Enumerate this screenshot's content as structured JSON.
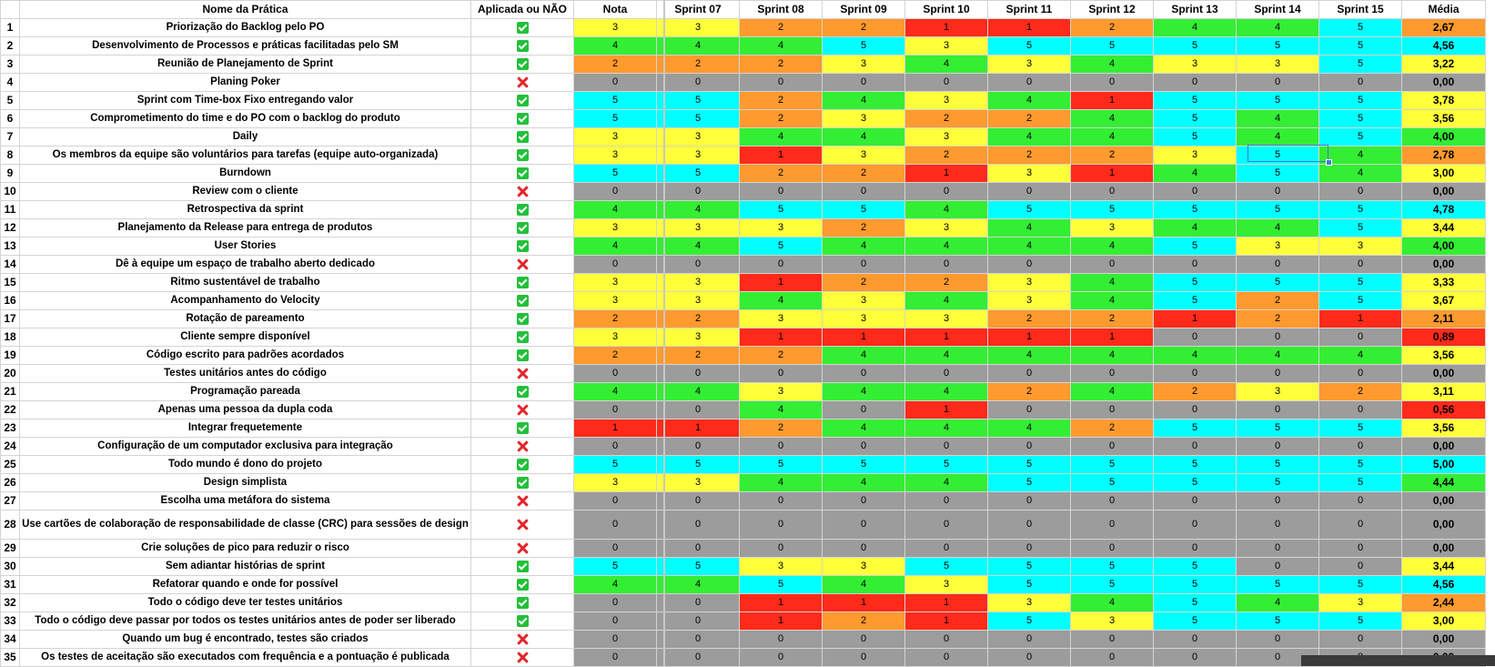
{
  "headers": [
    "",
    "Nome da Prática",
    "Aplicada ou NÃO",
    "Nota",
    "Sprint 07",
    "Sprint 08",
    "Sprint 09",
    "Sprint 10",
    "Sprint 11",
    "Sprint 12",
    "Sprint 13",
    "Sprint 14",
    "Sprint 15",
    "Média"
  ],
  "colors": {
    "red": "#ff2a1a",
    "orange": "#ff9a2e",
    "yellow": "#ffff3a",
    "green": "#33ee33",
    "cyan": "#00ffff",
    "gray": "#9c9c9c",
    "selection": "#3d7bd6"
  },
  "icons": {
    "applied": "check-box-icon",
    "not_applied": "cross-icon"
  },
  "selected_cell": {
    "row": 8,
    "column": "Sprint 14"
  },
  "rows": [
    {
      "n": "1",
      "name": "Priorização do Backlog pelo PO",
      "applied": true,
      "vals": [
        "3",
        "3",
        "2",
        "2",
        "1",
        "1",
        "2",
        "4",
        "4",
        "5"
      ],
      "media": "2,67"
    },
    {
      "n": "2",
      "name": "Desenvolvimento de Processos e práticas facilitadas pelo SM",
      "applied": true,
      "vals": [
        "4",
        "4",
        "4",
        "5",
        "3",
        "5",
        "5",
        "5",
        "5",
        "5"
      ],
      "media": "4,56"
    },
    {
      "n": "3",
      "name": "Reunião de Planejamento de Sprint",
      "applied": true,
      "vals": [
        "2",
        "2",
        "2",
        "3",
        "4",
        "3",
        "4",
        "3",
        "3",
        "5"
      ],
      "media": "3,22"
    },
    {
      "n": "4",
      "name": "Planing Poker",
      "applied": false,
      "vals": [
        "0",
        "0",
        "0",
        "0",
        "0",
        "0",
        "0",
        "0",
        "0",
        "0"
      ],
      "media": "0,00"
    },
    {
      "n": "5",
      "name": "Sprint com Time-box Fixo entregando valor",
      "applied": true,
      "vals": [
        "5",
        "5",
        "2",
        "4",
        "3",
        "4",
        "1",
        "5",
        "5",
        "5"
      ],
      "media": "3,78"
    },
    {
      "n": "6",
      "name": "Comprometimento do time e do PO com o backlog do produto",
      "applied": true,
      "vals": [
        "5",
        "5",
        "2",
        "3",
        "2",
        "2",
        "4",
        "5",
        "4",
        "5"
      ],
      "media": "3,56"
    },
    {
      "n": "7",
      "name": "Daily",
      "applied": true,
      "vals": [
        "3",
        "3",
        "4",
        "4",
        "3",
        "4",
        "4",
        "5",
        "4",
        "5"
      ],
      "media": "4,00"
    },
    {
      "n": "8",
      "name": "Os membros da equipe são voluntários para tarefas (equipe auto-organizada)",
      "applied": true,
      "vals": [
        "3",
        "3",
        "1",
        "3",
        "2",
        "2",
        "2",
        "3",
        "5",
        "4"
      ],
      "media": "2,78"
    },
    {
      "n": "9",
      "name": "Burndown",
      "applied": true,
      "vals": [
        "5",
        "5",
        "2",
        "2",
        "1",
        "3",
        "1",
        "4",
        "5",
        "4"
      ],
      "media": "3,00"
    },
    {
      "n": "10",
      "name": "Review com o cliente",
      "applied": false,
      "vals": [
        "0",
        "0",
        "0",
        "0",
        "0",
        "0",
        "0",
        "0",
        "0",
        "0"
      ],
      "media": "0,00"
    },
    {
      "n": "11",
      "name": "Retrospectiva da sprint",
      "applied": true,
      "vals": [
        "4",
        "4",
        "5",
        "5",
        "4",
        "5",
        "5",
        "5",
        "5",
        "5"
      ],
      "media": "4,78"
    },
    {
      "n": "12",
      "name": "Planejamento da Release para entrega de produtos",
      "applied": true,
      "vals": [
        "3",
        "3",
        "3",
        "2",
        "3",
        "4",
        "3",
        "4",
        "4",
        "5"
      ],
      "media": "3,44"
    },
    {
      "n": "13",
      "name": "User Stories",
      "applied": true,
      "vals": [
        "4",
        "4",
        "5",
        "4",
        "4",
        "4",
        "4",
        "5",
        "3",
        "3"
      ],
      "media": "4,00"
    },
    {
      "n": "14",
      "name": "Dê à equipe um espaço de trabalho aberto dedicado",
      "applied": false,
      "vals": [
        "0",
        "0",
        "0",
        "0",
        "0",
        "0",
        "0",
        "0",
        "0",
        "0"
      ],
      "media": "0,00"
    },
    {
      "n": "15",
      "name": "Ritmo sustentável de trabalho",
      "applied": true,
      "vals": [
        "3",
        "3",
        "1",
        "2",
        "2",
        "3",
        "4",
        "5",
        "5",
        "5"
      ],
      "media": "3,33"
    },
    {
      "n": "16",
      "name": "Acompanhamento do Velocity",
      "applied": true,
      "vals": [
        "3",
        "3",
        "4",
        "3",
        "4",
        "3",
        "4",
        "5",
        "2",
        "5"
      ],
      "media": "3,67"
    },
    {
      "n": "17",
      "name": "Rotação de pareamento",
      "applied": true,
      "vals": [
        "2",
        "2",
        "3",
        "3",
        "3",
        "2",
        "2",
        "1",
        "2",
        "1"
      ],
      "media": "2,11"
    },
    {
      "n": "18",
      "name": "Cliente sempre disponível",
      "applied": true,
      "vals": [
        "3",
        "3",
        "1",
        "1",
        "1",
        "1",
        "1",
        "0",
        "0",
        "0"
      ],
      "media": "0,89"
    },
    {
      "n": "19",
      "name": "Código escrito para padrões acordados",
      "applied": true,
      "vals": [
        "2",
        "2",
        "2",
        "4",
        "4",
        "4",
        "4",
        "4",
        "4",
        "4"
      ],
      "media": "3,56"
    },
    {
      "n": "20",
      "name": "Testes unitários antes do código",
      "applied": false,
      "vals": [
        "0",
        "0",
        "0",
        "0",
        "0",
        "0",
        "0",
        "0",
        "0",
        "0"
      ],
      "media": "0,00"
    },
    {
      "n": "21",
      "name": "Programação pareada",
      "applied": true,
      "vals": [
        "4",
        "4",
        "3",
        "4",
        "4",
        "2",
        "4",
        "2",
        "3",
        "2"
      ],
      "media": "3,11"
    },
    {
      "n": "22",
      "name": "Apenas uma pessoa da dupla coda",
      "applied": false,
      "vals": [
        "0",
        "0",
        "4",
        "0",
        "1",
        "0",
        "0",
        "0",
        "0",
        "0"
      ],
      "media": "0,56"
    },
    {
      "n": "23",
      "name": "Integrar frequetemente",
      "applied": true,
      "vals": [
        "1",
        "1",
        "2",
        "4",
        "4",
        "4",
        "2",
        "5",
        "5",
        "5"
      ],
      "media": "3,56"
    },
    {
      "n": "24",
      "name": "Configuração de um computador exclusiva para integração",
      "applied": false,
      "vals": [
        "0",
        "0",
        "0",
        "0",
        "0",
        "0",
        "0",
        "0",
        "0",
        "0"
      ],
      "media": "0,00"
    },
    {
      "n": "25",
      "name": "Todo mundo é dono do projeto",
      "applied": true,
      "vals": [
        "5",
        "5",
        "5",
        "5",
        "5",
        "5",
        "5",
        "5",
        "5",
        "5"
      ],
      "media": "5,00"
    },
    {
      "n": "26",
      "name": "Design simplista",
      "applied": true,
      "vals": [
        "3",
        "3",
        "4",
        "4",
        "4",
        "5",
        "5",
        "5",
        "5",
        "5"
      ],
      "media": "4,44"
    },
    {
      "n": "27",
      "name": "Escolha uma metáfora do sistema",
      "applied": false,
      "vals": [
        "0",
        "0",
        "0",
        "0",
        "0",
        "0",
        "0",
        "0",
        "0",
        "0"
      ],
      "media": "0,00"
    },
    {
      "n": "28",
      "name": "Use cartões de colaboração de responsabilidade de classe (CRC) para sessões de design",
      "applied": false,
      "vals": [
        "0",
        "0",
        "0",
        "0",
        "0",
        "0",
        "0",
        "0",
        "0",
        "0"
      ],
      "media": "0,00",
      "tall": true
    },
    {
      "n": "29",
      "name": "Crie soluções de pico para reduzir o risco",
      "applied": false,
      "vals": [
        "0",
        "0",
        "0",
        "0",
        "0",
        "0",
        "0",
        "0",
        "0",
        "0"
      ],
      "media": "0,00"
    },
    {
      "n": "30",
      "name": "Sem adiantar histórias de sprint",
      "applied": true,
      "vals": [
        "5",
        "5",
        "3",
        "3",
        "5",
        "5",
        "5",
        "5",
        "0",
        "0"
      ],
      "media": "3,44"
    },
    {
      "n": "31",
      "name": "Refatorar quando e onde for possível",
      "applied": true,
      "vals": [
        "4",
        "4",
        "5",
        "4",
        "3",
        "5",
        "5",
        "5",
        "5",
        "5"
      ],
      "media": "4,56"
    },
    {
      "n": "32",
      "name": "Todo o código deve ter testes unitários",
      "applied": true,
      "vals": [
        "0",
        "0",
        "1",
        "1",
        "1",
        "3",
        "4",
        "5",
        "4",
        "3"
      ],
      "media": "2,44"
    },
    {
      "n": "33",
      "name": "Todo o código deve passar por todos os testes unitários antes de poder ser liberado",
      "applied": true,
      "vals": [
        "0",
        "0",
        "1",
        "2",
        "1",
        "5",
        "3",
        "5",
        "5",
        "5"
      ],
      "media": "3,00"
    },
    {
      "n": "34",
      "name": "Quando um bug é encontrado, testes são criados",
      "applied": false,
      "vals": [
        "0",
        "0",
        "0",
        "0",
        "0",
        "0",
        "0",
        "0",
        "0",
        "0"
      ],
      "media": "0,00"
    },
    {
      "n": "35",
      "name": "Os testes de aceitação são executados com frequência e a pontuação é publicada",
      "applied": false,
      "vals": [
        "0",
        "0",
        "0",
        "0",
        "0",
        "0",
        "0",
        "0",
        "0",
        "0"
      ],
      "media": "0,00"
    }
  ]
}
